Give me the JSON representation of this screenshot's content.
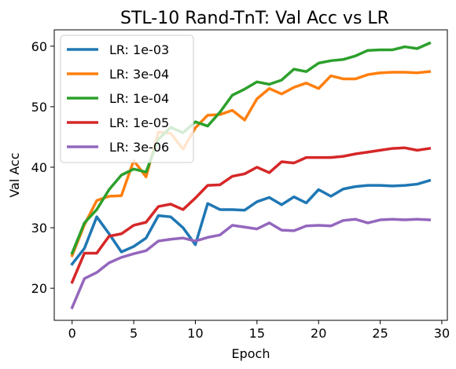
{
  "chart_data": {
    "type": "line",
    "title": "STL-10 Rand-TnT: Val Acc vs LR",
    "xlabel": "Epoch",
    "ylabel": "Val Acc",
    "xlim": [
      -1.45,
      30.45
    ],
    "ylim": [
      14.7,
      62.7
    ],
    "xticks": [
      0,
      5,
      10,
      15,
      20,
      25,
      30
    ],
    "yticks": [
      20,
      30,
      40,
      50,
      60
    ],
    "grid": false,
    "legend_position": "upper-left",
    "x": [
      0,
      1,
      2,
      3,
      4,
      5,
      6,
      7,
      8,
      9,
      10,
      11,
      12,
      13,
      14,
      15,
      16,
      17,
      18,
      19,
      20,
      21,
      22,
      23,
      24,
      25,
      26,
      27,
      28,
      29
    ],
    "series": [
      {
        "name": "LR: 1e-03",
        "color": "#1f77b4",
        "values": [
          24.0,
          26.6,
          31.8,
          29.0,
          26.0,
          26.9,
          28.3,
          32.0,
          31.8,
          30.0,
          27.2,
          34.0,
          33.0,
          33.0,
          32.9,
          34.3,
          35.0,
          33.8,
          35.1,
          34.1,
          36.3,
          35.2,
          36.4,
          36.8,
          37.0,
          37.0,
          36.9,
          37.0,
          37.2,
          37.8
        ]
      },
      {
        "name": "LR: 3e-04",
        "color": "#ff7f0e",
        "values": [
          25.4,
          30.5,
          34.5,
          35.2,
          35.3,
          41.1,
          38.4,
          45.8,
          45.6,
          43.0,
          46.5,
          48.6,
          48.7,
          49.4,
          47.8,
          51.3,
          53.0,
          52.1,
          53.2,
          53.9,
          53.0,
          55.1,
          54.6,
          54.6,
          55.3,
          55.6,
          55.7,
          55.7,
          55.6,
          55.8
        ]
      },
      {
        "name": "LR: 1e-04",
        "color": "#2ca02c",
        "values": [
          25.8,
          30.8,
          33.0,
          36.3,
          38.7,
          39.7,
          39.2,
          44.6,
          46.6,
          45.7,
          47.5,
          46.8,
          49.1,
          51.9,
          52.9,
          54.1,
          53.7,
          54.4,
          56.2,
          55.8,
          57.2,
          57.6,
          57.8,
          58.4,
          59.3,
          59.4,
          59.4,
          59.9,
          59.6,
          60.5
        ]
      },
      {
        "name": "LR: 1e-05",
        "color": "#d62728",
        "values": [
          21.0,
          25.8,
          25.8,
          28.6,
          29.0,
          30.4,
          30.9,
          33.5,
          33.9,
          33.0,
          34.9,
          37.0,
          37.1,
          38.5,
          38.9,
          40.0,
          39.1,
          40.9,
          40.7,
          41.6,
          41.6,
          41.6,
          41.8,
          42.2,
          42.5,
          42.8,
          43.1,
          43.2,
          42.8,
          43.1
        ]
      },
      {
        "name": "LR: 3e-06",
        "color": "#9467bd",
        "values": [
          16.8,
          21.6,
          22.6,
          24.2,
          25.1,
          25.7,
          26.2,
          27.8,
          28.1,
          28.3,
          27.8,
          28.4,
          28.8,
          30.4,
          30.1,
          29.8,
          30.8,
          29.6,
          29.5,
          30.3,
          30.4,
          30.3,
          31.2,
          31.4,
          30.8,
          31.3,
          31.4,
          31.3,
          31.4,
          31.3
        ]
      }
    ]
  }
}
